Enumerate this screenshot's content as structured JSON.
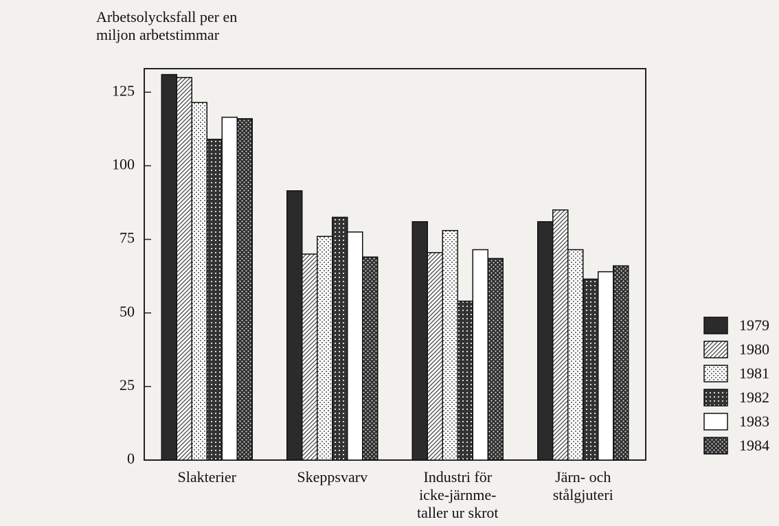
{
  "chart_data": {
    "type": "bar",
    "title": "Arbetsolycksfall per en\nmiljon arbetstimmar",
    "categories": [
      "Slakterier",
      "Skeppsvarv",
      "Industri för\nicke-järnme-\ntaller ur skrot",
      "Järn- och\nstålgjuteri"
    ],
    "series": [
      {
        "name": "1979",
        "color": "#2b2b2b",
        "values": [
          131,
          91.5,
          81,
          81
        ]
      },
      {
        "name": "1980",
        "color": "#444444",
        "values": [
          130,
          70,
          70.5,
          85
        ]
      },
      {
        "name": "1981",
        "color": "#777777",
        "values": [
          121.5,
          76,
          78,
          71.5
        ]
      },
      {
        "name": "1982",
        "color": "#333333",
        "values": [
          109,
          82.5,
          54,
          61.5
        ]
      },
      {
        "name": "1983",
        "color": "#ffffff",
        "values": [
          116.5,
          77.5,
          71.5,
          64
        ]
      },
      {
        "name": "1984",
        "color": "#303030",
        "values": [
          116,
          69,
          68.5,
          66
        ]
      }
    ],
    "ylim": [
      0,
      133
    ],
    "yticks": [
      0,
      25,
      50,
      75,
      100,
      125
    ],
    "legend": "right"
  }
}
